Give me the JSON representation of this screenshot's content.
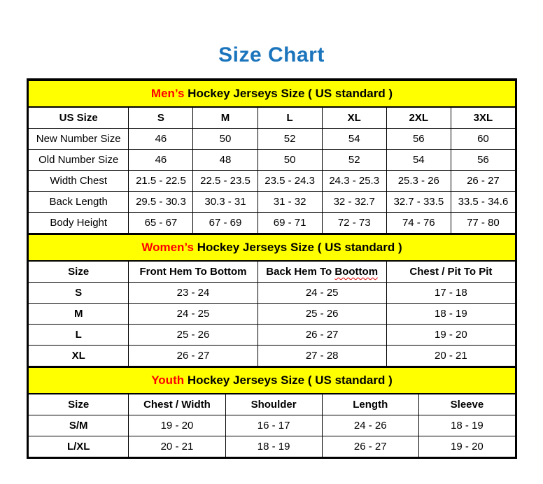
{
  "page": {
    "title": "Size Chart"
  },
  "colors": {
    "title_blue": "#1B75BC",
    "banner_yellow": "#FFFF00",
    "accent_red": "#FF0000",
    "border_black": "#000000",
    "squiggle_red": "#E00000"
  },
  "tables": [
    {
      "id": "mens",
      "banner": {
        "highlight": "Men’s",
        "rest": "Hockey Jerseys Size ( US standard )"
      },
      "columns": [
        "US Size",
        "S",
        "M",
        "L",
        "XL",
        "2XL",
        "3XL"
      ],
      "rows": [
        [
          "New Number Size",
          "46",
          "50",
          "52",
          "54",
          "56",
          "60"
        ],
        [
          "Old Number Size",
          "46",
          "48",
          "50",
          "52",
          "54",
          "56"
        ],
        [
          "Width Chest",
          "21.5 - 22.5",
          "22.5 - 23.5",
          "23.5 - 24.3",
          "24.3 - 25.3",
          "25.3 - 26",
          "26 - 27"
        ],
        [
          "Back Length",
          "29.5 - 30.3",
          "30.3 - 31",
          "31 - 32",
          "32 - 32.7",
          "32.7 - 33.5",
          "33.5 - 34.6"
        ],
        [
          "Body Height",
          "65 - 67",
          "67 - 69",
          "69 - 71",
          "72 - 73",
          "74 - 76",
          "77 - 80"
        ]
      ],
      "spellcheck_words": []
    },
    {
      "id": "womens",
      "banner": {
        "highlight": "Women’s",
        "rest": "Hockey Jerseys Size ( US standard )"
      },
      "columns": [
        "Size",
        "Front Hem To Bottom",
        "Back Hem To Boottom",
        "Chest / Pit To Pit"
      ],
      "rows": [
        [
          "S",
          "23 - 24",
          "24 - 25",
          "17 - 18"
        ],
        [
          "M",
          "24 - 25",
          "25 - 26",
          "18 - 19"
        ],
        [
          "L",
          "25 - 26",
          "26 - 27",
          "19 - 20"
        ],
        [
          "XL",
          "26 - 27",
          "27 - 28",
          "20 - 21"
        ]
      ],
      "spellcheck_words": [
        "Boottom"
      ]
    },
    {
      "id": "youth",
      "banner": {
        "highlight": "Youth",
        "rest": "Hockey Jerseys Size ( US standard )"
      },
      "columns": [
        "Size",
        "Chest / Width",
        "Shoulder",
        "Length",
        "Sleeve"
      ],
      "rows": [
        [
          "S/M",
          "19 - 20",
          "16 - 17",
          "24 - 26",
          "18 - 19"
        ],
        [
          "L/XL",
          "20 - 21",
          "18 - 19",
          "26 - 27",
          "19 - 20"
        ]
      ],
      "spellcheck_words": []
    }
  ]
}
